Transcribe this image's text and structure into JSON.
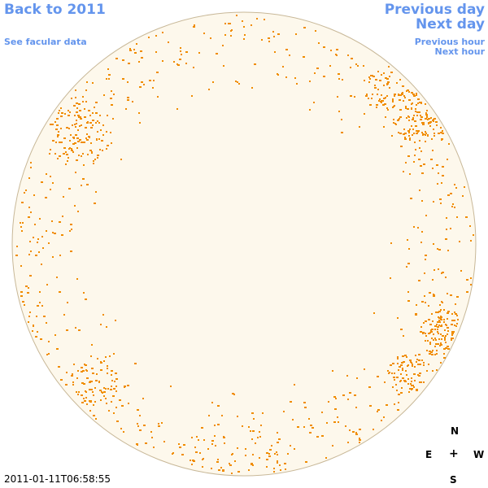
{
  "nav": {
    "back": "Back to 2011",
    "facular": "See facular data",
    "prev_day": "Previous day",
    "next_day": "Next day",
    "prev_hour": "Previous hour",
    "next_hour": "Next hour"
  },
  "compass": {
    "north": "N",
    "south": "S",
    "east": "E",
    "west": "W",
    "center": "+"
  },
  "timestamp": "2011-01-11T06:58:55",
  "colors": {
    "link": "#6495ed",
    "disk_fill": "#fdf8ec",
    "disk_edge": "#c8b898",
    "spot": "#f08c00"
  }
}
